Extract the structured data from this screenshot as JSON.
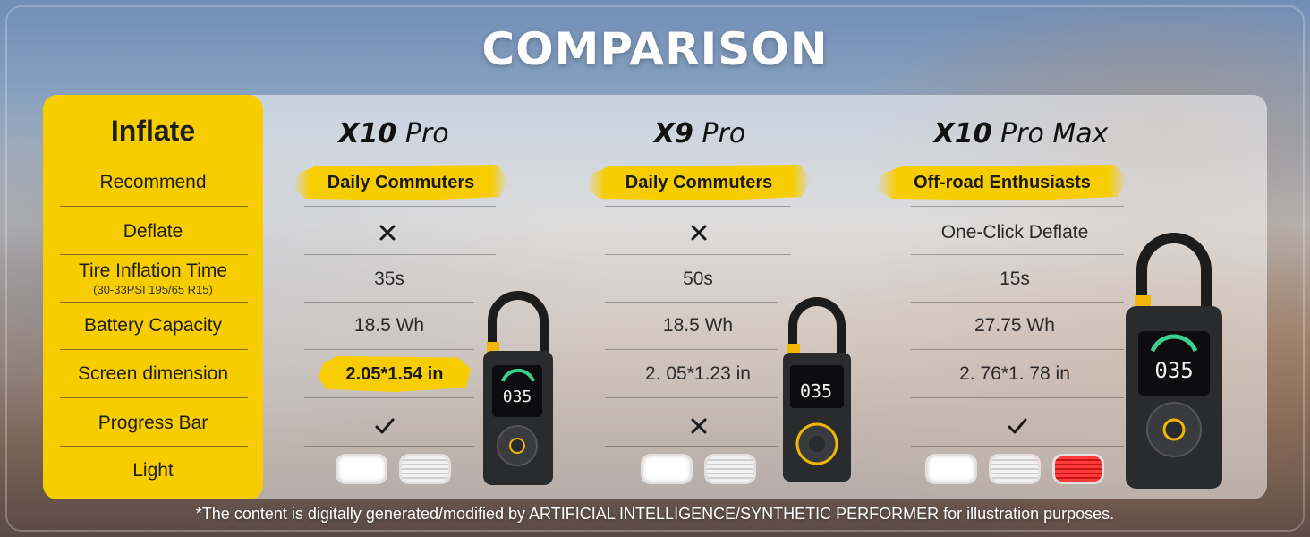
{
  "title": "COMPARISON",
  "label_column": {
    "header": "Inflate",
    "rows": [
      {
        "label": "Recommend"
      },
      {
        "label": "Deflate"
      },
      {
        "label": "Tire Inflation Time",
        "sub": "(30-33PSI 195/65 R15)"
      },
      {
        "label": "Battery Capacity"
      },
      {
        "label": "Screen dimension"
      },
      {
        "label": "Progress Bar"
      },
      {
        "label": "Light"
      }
    ]
  },
  "products": [
    {
      "name_bold": "X10",
      "name_rest": "Pro",
      "recommend": "Daily Commuters",
      "deflate": "✕",
      "inflation_time": "35s",
      "battery": "18.5 Wh",
      "screen": "2.05*1.54 in",
      "progress_bar": "✓",
      "device_screen": "035"
    },
    {
      "name_bold": "X9",
      "name_rest": "Pro",
      "recommend": "Daily Commuters",
      "deflate": "✕",
      "inflation_time": "50s",
      "battery": "18.5 Wh",
      "screen": "2. 05*1.23 in",
      "progress_bar": "✕",
      "device_screen": "035"
    },
    {
      "name_bold": "X10",
      "name_rest": "Pro Max",
      "recommend": "Off-road Enthusiasts",
      "deflate": "One-Click Deflate",
      "inflation_time": "15s",
      "battery": "27.75 Wh",
      "screen": "2. 76*1. 78 in",
      "progress_bar": "✓",
      "device_screen": "035"
    }
  ],
  "lights": [
    [
      "white",
      "stripe"
    ],
    [
      "white",
      "stripe"
    ],
    [
      "white",
      "stripe",
      "red"
    ]
  ],
  "colors": {
    "accent": "#f8cd00",
    "red_light": "#ff3b3b"
  },
  "footnote": "*The content is digitally generated/modified by ARTIFICIAL INTELLIGENCE/SYNTHETIC PERFORMER for illustration purposes."
}
